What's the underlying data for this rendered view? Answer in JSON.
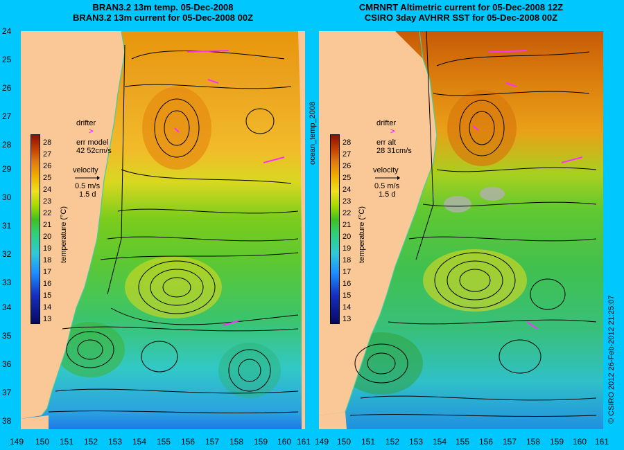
{
  "left_panel": {
    "title_line1": "BRAN3.2 13m temp. 05-Dec-2008",
    "title_line2": "BRAN3.2 13m current for 05-Dec-2008 00Z",
    "drifter_label": "drifter",
    "drifter_marker": ">",
    "err_label": "err model",
    "err_value": "42 52cm/s",
    "velocity_label": "velocity",
    "velocity_speed": "0.5 m/s",
    "velocity_time": "1.5 d",
    "colorbar_title": "temperature (°C)"
  },
  "right_panel": {
    "title_line1": "CMRNRT Altimetric current for 05-Dec-2008 12Z",
    "title_line2": "CSIRO 3day AVHRR SST for 05-Dec-2008 00Z",
    "drifter_label": "drifter",
    "drifter_marker": ">",
    "err_label": "err alt",
    "err_value": "28 31cm/s",
    "velocity_label": "velocity",
    "velocity_speed": "0.5 m/s",
    "velocity_time": "1.5 d",
    "colorbar_title": "temperature (°C)"
  },
  "middle_label": "ocean_temp_2008",
  "credit": "© CSIRO 2012   26-Feb-2012 21:25:07",
  "colorbar_ticks": [
    "28",
    "27",
    "26",
    "25",
    "24",
    "23",
    "22",
    "21",
    "20",
    "19",
    "18",
    "17",
    "16",
    "15",
    "14",
    "13"
  ],
  "y_axis_labels": [
    "24",
    "25",
    "26",
    "27",
    "28",
    "29",
    "30",
    "31",
    "32",
    "33",
    "34",
    "35",
    "36",
    "37",
    "38"
  ],
  "x_axis_labels": [
    "149",
    "150",
    "151",
    "152",
    "153",
    "154",
    "155",
    "156",
    "157",
    "158",
    "159",
    "160",
    "161"
  ],
  "colors": {
    "background": "#00c8ff",
    "land": "#fac896",
    "drifter": "#ff30ff"
  }
}
